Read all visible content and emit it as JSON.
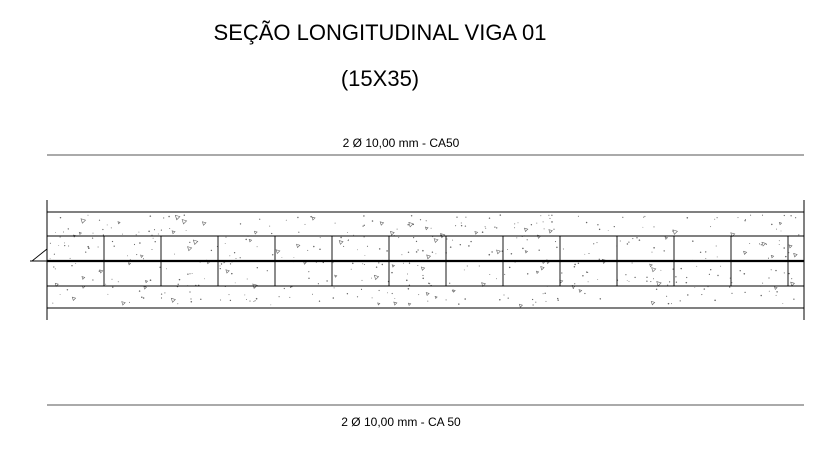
{
  "drawing": {
    "title": "SEÇÃO LONGITUDINAL VIGA 01",
    "subtitle": "(15X35)",
    "top_bar_label": "2 Ø 10,00 mm - CA50",
    "bottom_bar_label": "2 Ø 10,00 mm - CA 50"
  }
}
